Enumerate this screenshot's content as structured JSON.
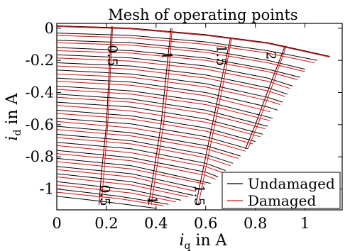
{
  "chart_data": {
    "type": "line",
    "title": "Mesh of operating points",
    "xlabel": {
      "symbol": "i",
      "sub": "q",
      "unit": " in A"
    },
    "ylabel": {
      "symbol": "i",
      "sub": "d",
      "unit": " in A"
    },
    "xlim": [
      0,
      1.15
    ],
    "ylim": [
      -1.13,
      0.03
    ],
    "xticks": [
      {
        "value": 0,
        "label": "0"
      },
      {
        "value": 0.2,
        "label": "0.2"
      },
      {
        "value": 0.4,
        "label": "0.4"
      },
      {
        "value": 0.6,
        "label": "0.6"
      },
      {
        "value": 0.8,
        "label": "0.8"
      },
      {
        "value": 1,
        "label": "1"
      }
    ],
    "yticks": [
      {
        "value": 0,
        "label": "0"
      },
      {
        "value": -0.2,
        "label": "-0.2"
      },
      {
        "value": -0.4,
        "label": "-0.4"
      },
      {
        "value": -0.6,
        "label": "-0.6"
      },
      {
        "value": -0.8,
        "label": "-0.8"
      },
      {
        "value": -1,
        "label": "-1"
      }
    ],
    "grid": false,
    "legend": "bottom-right",
    "colors": {
      "undamaged": "#000000",
      "damaged": "#ff0000"
    },
    "series": [
      {
        "name": "Undamaged",
        "color": "#000000",
        "curves": [
          [
            [
              0,
              0.015
            ],
            [
              0.3,
              0.0
            ],
            [
              0.6,
              -0.04
            ],
            [
              0.85,
              -0.09
            ],
            [
              1.1,
              -0.175
            ]
          ],
          [
            [
              0,
              -0.03
            ],
            [
              0.3,
              -0.045
            ],
            [
              0.6,
              -0.085
            ],
            [
              0.85,
              -0.14
            ],
            [
              1.05,
              -0.2
            ]
          ],
          [
            [
              0,
              -0.075
            ],
            [
              0.3,
              -0.09
            ],
            [
              0.6,
              -0.135
            ],
            [
              0.85,
              -0.2
            ],
            [
              1.0,
              -0.255
            ]
          ],
          [
            [
              0,
              -0.12
            ],
            [
              0.3,
              -0.14
            ],
            [
              0.6,
              -0.185
            ],
            [
              0.85,
              -0.255
            ],
            [
              0.98,
              -0.305
            ]
          ],
          [
            [
              0,
              -0.165
            ],
            [
              0.3,
              -0.185
            ],
            [
              0.6,
              -0.235
            ],
            [
              0.85,
              -0.31
            ],
            [
              0.95,
              -0.36
            ]
          ],
          [
            [
              0,
              -0.215
            ],
            [
              0.3,
              -0.235
            ],
            [
              0.6,
              -0.29
            ],
            [
              0.85,
              -0.37
            ],
            [
              0.93,
              -0.41
            ]
          ],
          [
            [
              0,
              -0.26
            ],
            [
              0.3,
              -0.285
            ],
            [
              0.6,
              -0.345
            ],
            [
              0.85,
              -0.43
            ],
            [
              0.91,
              -0.46
            ]
          ],
          [
            [
              0,
              -0.31
            ],
            [
              0.3,
              -0.335
            ],
            [
              0.6,
              -0.4
            ],
            [
              0.85,
              -0.49
            ],
            [
              0.89,
              -0.51
            ]
          ],
          [
            [
              0,
              -0.36
            ],
            [
              0.3,
              -0.39
            ],
            [
              0.6,
              -0.455
            ],
            [
              0.87,
              -0.56
            ]
          ],
          [
            [
              0,
              -0.41
            ],
            [
              0.3,
              -0.44
            ],
            [
              0.6,
              -0.51
            ],
            [
              0.85,
              -0.61
            ]
          ],
          [
            [
              0,
              -0.46
            ],
            [
              0.3,
              -0.49
            ],
            [
              0.6,
              -0.565
            ],
            [
              0.83,
              -0.66
            ]
          ],
          [
            [
              0,
              -0.51
            ],
            [
              0.3,
              -0.545
            ],
            [
              0.6,
              -0.62
            ],
            [
              0.8,
              -0.705
            ]
          ],
          [
            [
              0,
              -0.56
            ],
            [
              0.3,
              -0.595
            ],
            [
              0.6,
              -0.675
            ],
            [
              0.77,
              -0.75
            ]
          ],
          [
            [
              0,
              -0.61
            ],
            [
              0.3,
              -0.65
            ],
            [
              0.6,
              -0.73
            ],
            [
              0.74,
              -0.795
            ]
          ],
          [
            [
              0,
              -0.66
            ],
            [
              0.3,
              -0.7
            ],
            [
              0.6,
              -0.785
            ],
            [
              0.71,
              -0.84
            ]
          ],
          [
            [
              0,
              -0.71
            ],
            [
              0.3,
              -0.75
            ],
            [
              0.6,
              -0.84
            ],
            [
              0.68,
              -0.885
            ]
          ],
          [
            [
              0,
              -0.76
            ],
            [
              0.3,
              -0.805
            ],
            [
              0.6,
              -0.895
            ],
            [
              0.65,
              -0.925
            ]
          ],
          [
            [
              0,
              -0.81
            ],
            [
              0.3,
              -0.855
            ],
            [
              0.62,
              -0.965
            ]
          ],
          [
            [
              0,
              -0.86
            ],
            [
              0.3,
              -0.905
            ],
            [
              0.58,
              -1.0
            ]
          ],
          [
            [
              0,
              -0.905
            ],
            [
              0.3,
              -0.955
            ],
            [
              0.55,
              -1.04
            ]
          ],
          [
            [
              0,
              -0.955
            ],
            [
              0.3,
              -1.005
            ],
            [
              0.5,
              -1.07
            ]
          ],
          [
            [
              0,
              -1.0
            ],
            [
              0.25,
              -1.045
            ],
            [
              0.45,
              -1.095
            ]
          ],
          [
            [
              0,
              -1.045
            ],
            [
              0.2,
              -1.08
            ],
            [
              0.4,
              -1.12
            ]
          ],
          [
            [
              0.22,
              0.012
            ],
            [
              0.21,
              -0.3
            ],
            [
              0.2,
              -0.6
            ],
            [
              0.18,
              -0.9
            ],
            [
              0.17,
              -1.1
            ]
          ],
          [
            [
              0.46,
              0.0
            ],
            [
              0.44,
              -0.3
            ],
            [
              0.42,
              -0.6
            ],
            [
              0.39,
              -0.9
            ],
            [
              0.37,
              -1.1
            ]
          ],
          [
            [
              0.7,
              -0.06
            ],
            [
              0.66,
              -0.35
            ],
            [
              0.62,
              -0.65
            ],
            [
              0.58,
              -0.95
            ],
            [
              0.56,
              -1.1
            ]
          ],
          [
            [
              0.92,
              -0.11
            ],
            [
              0.86,
              -0.35
            ],
            [
              0.8,
              -0.6
            ],
            [
              0.76,
              -0.75
            ]
          ]
        ]
      },
      {
        "name": "Damaged",
        "color": "#ff0000",
        "curves": [
          [
            [
              0,
              0.01
            ],
            [
              0.3,
              -0.005
            ],
            [
              0.6,
              -0.045
            ],
            [
              0.85,
              -0.095
            ],
            [
              1.1,
              -0.18
            ]
          ],
          [
            [
              0,
              -0.045
            ],
            [
              0.3,
              -0.06
            ],
            [
              0.6,
              -0.1
            ],
            [
              0.85,
              -0.155
            ],
            [
              1.04,
              -0.215
            ]
          ],
          [
            [
              0,
              -0.09
            ],
            [
              0.3,
              -0.105
            ],
            [
              0.6,
              -0.15
            ],
            [
              0.85,
              -0.215
            ],
            [
              1.0,
              -0.27
            ]
          ],
          [
            [
              0,
              -0.14
            ],
            [
              0.3,
              -0.155
            ],
            [
              0.6,
              -0.2
            ],
            [
              0.85,
              -0.27
            ],
            [
              0.97,
              -0.32
            ]
          ],
          [
            [
              0,
              -0.185
            ],
            [
              0.3,
              -0.205
            ],
            [
              0.6,
              -0.255
            ],
            [
              0.85,
              -0.33
            ],
            [
              0.94,
              -0.375
            ]
          ],
          [
            [
              0,
              -0.235
            ],
            [
              0.3,
              -0.255
            ],
            [
              0.6,
              -0.31
            ],
            [
              0.85,
              -0.39
            ],
            [
              0.92,
              -0.425
            ]
          ],
          [
            [
              0,
              -0.285
            ],
            [
              0.3,
              -0.305
            ],
            [
              0.6,
              -0.365
            ],
            [
              0.85,
              -0.45
            ],
            [
              0.9,
              -0.475
            ]
          ],
          [
            [
              0,
              -0.33
            ],
            [
              0.3,
              -0.355
            ],
            [
              0.6,
              -0.42
            ],
            [
              0.86,
              -0.52
            ]
          ],
          [
            [
              0,
              -0.38
            ],
            [
              0.3,
              -0.41
            ],
            [
              0.6,
              -0.475
            ],
            [
              0.86,
              -0.575
            ]
          ],
          [
            [
              0,
              -0.43
            ],
            [
              0.3,
              -0.46
            ],
            [
              0.6,
              -0.53
            ],
            [
              0.84,
              -0.625
            ]
          ],
          [
            [
              0,
              -0.48
            ],
            [
              0.3,
              -0.515
            ],
            [
              0.6,
              -0.585
            ],
            [
              0.82,
              -0.675
            ]
          ],
          [
            [
              0,
              -0.53
            ],
            [
              0.3,
              -0.565
            ],
            [
              0.6,
              -0.64
            ],
            [
              0.79,
              -0.72
            ]
          ],
          [
            [
              0,
              -0.58
            ],
            [
              0.3,
              -0.62
            ],
            [
              0.6,
              -0.695
            ],
            [
              0.76,
              -0.765
            ]
          ],
          [
            [
              0,
              -0.63
            ],
            [
              0.3,
              -0.67
            ],
            [
              0.6,
              -0.75
            ],
            [
              0.73,
              -0.81
            ]
          ],
          [
            [
              0,
              -0.68
            ],
            [
              0.3,
              -0.72
            ],
            [
              0.6,
              -0.805
            ],
            [
              0.7,
              -0.855
            ]
          ],
          [
            [
              0,
              -0.73
            ],
            [
              0.3,
              -0.775
            ],
            [
              0.6,
              -0.86
            ],
            [
              0.67,
              -0.9
            ]
          ],
          [
            [
              0,
              -0.78
            ],
            [
              0.3,
              -0.825
            ],
            [
              0.6,
              -0.915
            ],
            [
              0.64,
              -0.94
            ]
          ],
          [
            [
              0,
              -0.83
            ],
            [
              0.3,
              -0.875
            ],
            [
              0.6,
              -0.97
            ]
          ],
          [
            [
              0,
              -0.88
            ],
            [
              0.3,
              -0.925
            ],
            [
              0.56,
              -1.015
            ]
          ],
          [
            [
              0,
              -0.925
            ],
            [
              0.3,
              -0.975
            ],
            [
              0.53,
              -1.05
            ]
          ],
          [
            [
              0,
              -0.975
            ],
            [
              0.3,
              -1.025
            ],
            [
              0.48,
              -1.08
            ]
          ],
          [
            [
              0,
              -1.02
            ],
            [
              0.25,
              -1.06
            ],
            [
              0.43,
              -1.105
            ]
          ],
          [
            [
              0.225,
              0.012
            ],
            [
              0.215,
              -0.3
            ],
            [
              0.205,
              -0.6
            ],
            [
              0.19,
              -0.9
            ],
            [
              0.18,
              -1.1
            ]
          ],
          [
            [
              0.465,
              0.0
            ],
            [
              0.45,
              -0.3
            ],
            [
              0.43,
              -0.6
            ],
            [
              0.4,
              -0.9
            ],
            [
              0.38,
              -1.1
            ]
          ],
          [
            [
              0.705,
              -0.06
            ],
            [
              0.67,
              -0.35
            ],
            [
              0.63,
              -0.65
            ],
            [
              0.59,
              -0.95
            ],
            [
              0.57,
              -1.1
            ]
          ],
          [
            [
              0.925,
              -0.11
            ],
            [
              0.87,
              -0.35
            ],
            [
              0.81,
              -0.6
            ],
            [
              0.77,
              -0.75
            ]
          ]
        ]
      }
    ],
    "annotations": [
      {
        "text": "0.5",
        "x": 0.22,
        "y": -0.17,
        "angle": 90
      },
      {
        "text": "1",
        "x": 0.44,
        "y": -0.17,
        "angle": 90
      },
      {
        "text": "1.5",
        "x": 0.66,
        "y": -0.17,
        "angle": 90
      },
      {
        "text": "2",
        "x": 0.86,
        "y": -0.17,
        "angle": 90
      },
      {
        "text": "0.5",
        "x": 0.19,
        "y": -1.04,
        "angle": 90
      },
      {
        "text": "1",
        "x": 0.38,
        "y": -1.07,
        "angle": 90
      },
      {
        "text": "1.5",
        "x": 0.57,
        "y": -1.04,
        "angle": 90
      }
    ]
  }
}
